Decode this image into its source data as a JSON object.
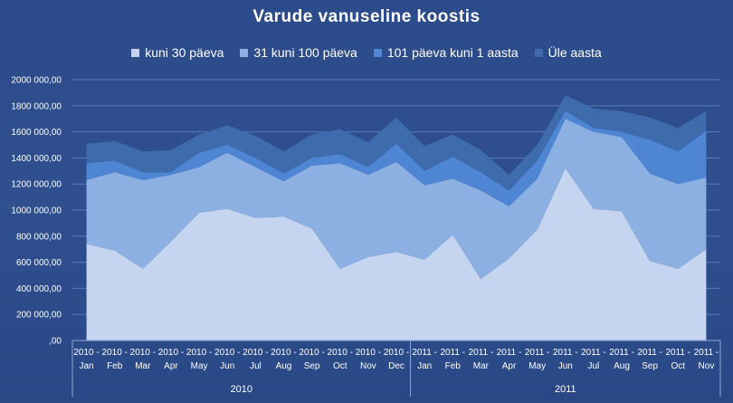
{
  "chart_data": {
    "type": "area",
    "stacked": true,
    "title": "Varude vanuseline koostis",
    "legend_position": "top",
    "grid": true,
    "ylim": [
      0,
      2000000
    ],
    "y_tick_values": [
      0,
      200000,
      400000,
      600000,
      800000,
      1000000,
      1200000,
      1400000,
      1600000,
      1800000,
      2000000
    ],
    "y_tick_labels": [
      ",00",
      "200 000,00",
      "400 000,00",
      "600 000,00",
      "800 000,00",
      "1000 000,00",
      "1200 000,00",
      "1400 000,00",
      "1600 000,00",
      "1800 000,00",
      "2000 000,00"
    ],
    "categories": [
      {
        "year": "2010",
        "month": "Jan"
      },
      {
        "year": "2010",
        "month": "Feb"
      },
      {
        "year": "2010",
        "month": "Mar"
      },
      {
        "year": "2010",
        "month": "Apr"
      },
      {
        "year": "2010",
        "month": "May"
      },
      {
        "year": "2010",
        "month": "Jun"
      },
      {
        "year": "2010",
        "month": "Jul"
      },
      {
        "year": "2010",
        "month": "Aug"
      },
      {
        "year": "2010",
        "month": "Sep"
      },
      {
        "year": "2010",
        "month": "Oct"
      },
      {
        "year": "2010",
        "month": "Nov"
      },
      {
        "year": "2010",
        "month": "Dec"
      },
      {
        "year": "2011",
        "month": "Jan"
      },
      {
        "year": "2011",
        "month": "Feb"
      },
      {
        "year": "2011",
        "month": "Mar"
      },
      {
        "year": "2011",
        "month": "Apr"
      },
      {
        "year": "2011",
        "month": "May"
      },
      {
        "year": "2011",
        "month": "Jun"
      },
      {
        "year": "2011",
        "month": "Jul"
      },
      {
        "year": "2011",
        "month": "Aug"
      },
      {
        "year": "2011",
        "month": "Sep"
      },
      {
        "year": "2011",
        "month": "Oct"
      },
      {
        "year": "2011",
        "month": "Nov"
      }
    ],
    "category_prefix": "-",
    "groups": [
      {
        "label": "2010"
      },
      {
        "label": "2011"
      }
    ],
    "series": [
      {
        "name": "kuni 30 päeva",
        "color": "#c5d4ef",
        "values": [
          740000,
          690000,
          550000,
          760000,
          980000,
          1010000,
          940000,
          950000,
          860000,
          550000,
          640000,
          680000,
          620000,
          810000,
          470000,
          630000,
          850000,
          1320000,
          1010000,
          990000,
          610000,
          550000,
          700000
        ]
      },
      {
        "name": "31 kuni 100 päeva",
        "color": "#8db0e3",
        "values": [
          490000,
          600000,
          680000,
          510000,
          350000,
          430000,
          390000,
          270000,
          480000,
          810000,
          630000,
          690000,
          570000,
          430000,
          680000,
          400000,
          390000,
          380000,
          590000,
          570000,
          670000,
          650000,
          550000
        ]
      },
      {
        "name": "101 päeva kuni 1 aasta",
        "color": "#4e86d3",
        "values": [
          130000,
          90000,
          60000,
          20000,
          110000,
          60000,
          70000,
          60000,
          60000,
          70000,
          60000,
          140000,
          110000,
          170000,
          140000,
          120000,
          140000,
          60000,
          30000,
          40000,
          260000,
          250000,
          360000
        ]
      },
      {
        "name": "Üle aasta",
        "color": "#3e6bab",
        "values": [
          150000,
          150000,
          160000,
          170000,
          140000,
          150000,
          170000,
          170000,
          180000,
          190000,
          190000,
          200000,
          190000,
          170000,
          170000,
          120000,
          120000,
          120000,
          150000,
          160000,
          170000,
          180000,
          150000
        ]
      }
    ]
  }
}
